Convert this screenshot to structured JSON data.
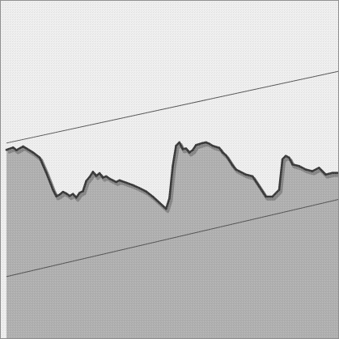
{
  "chart_data": {
    "type": "area",
    "title": "",
    "xlabel": "",
    "ylabel": "",
    "axes_visible": false,
    "grid": false,
    "legend": "none",
    "ylim": [
      0,
      100
    ],
    "xlim": [
      0,
      100
    ],
    "series": [
      {
        "x": [
          0,
          2,
          3,
          5,
          6,
          8,
          10,
          12,
          14,
          15,
          16,
          17,
          18,
          19,
          20,
          21,
          22,
          23,
          24,
          25,
          26,
          27,
          28,
          29,
          30,
          31,
          32,
          33,
          34,
          36,
          38,
          40,
          42,
          44,
          46,
          48,
          49,
          50,
          51,
          52,
          53,
          54,
          55,
          56,
          57,
          58,
          59,
          60,
          61,
          62,
          64,
          65,
          66,
          67,
          68,
          69,
          70,
          72,
          74,
          76,
          78,
          80,
          82,
          83,
          84,
          85,
          86,
          88,
          90,
          92,
          94,
          96,
          98,
          100
        ],
        "values": [
          55.8,
          56.5,
          55.7,
          56.8,
          56.2,
          55.0,
          53.5,
          49.0,
          44.0,
          42.1,
          42.6,
          43.4,
          42.9,
          42.2,
          42.8,
          41.7,
          43.1,
          43.6,
          46.6,
          47.8,
          49.3,
          48.1,
          48.9,
          47.6,
          48.0,
          47.3,
          46.8,
          46.3,
          46.8,
          46.1,
          45.4,
          44.5,
          43.5,
          42.0,
          40.2,
          38.4,
          41.5,
          51.0,
          57.0,
          58.0,
          56.0,
          56.2,
          55.0,
          55.7,
          57.2,
          57.5,
          57.8,
          58.0,
          57.6,
          57.0,
          56.4,
          55.0,
          54.2,
          52.7,
          51.2,
          50.0,
          49.5,
          48.5,
          48.0,
          45.0,
          42.0,
          42.0,
          44.0,
          53.0,
          54.0,
          53.5,
          51.5,
          51.0,
          50.0,
          49.5,
          50.5,
          48.5,
          49.0,
          49.0
        ]
      }
    ],
    "reference_lines": [
      {
        "x": [
          0,
          100
        ],
        "values": [
          57.8,
          79.0
        ]
      },
      {
        "x": [
          0,
          100
        ],
        "values": [
          18.4,
          41.2
        ]
      }
    ],
    "colors": {
      "plot_background": "#efefef",
      "area_fill": "#aaaaaa",
      "series_line": "#3a3a3a",
      "line_shadow": "#888888",
      "reference_line": "#555555",
      "frame": "#909090"
    }
  }
}
